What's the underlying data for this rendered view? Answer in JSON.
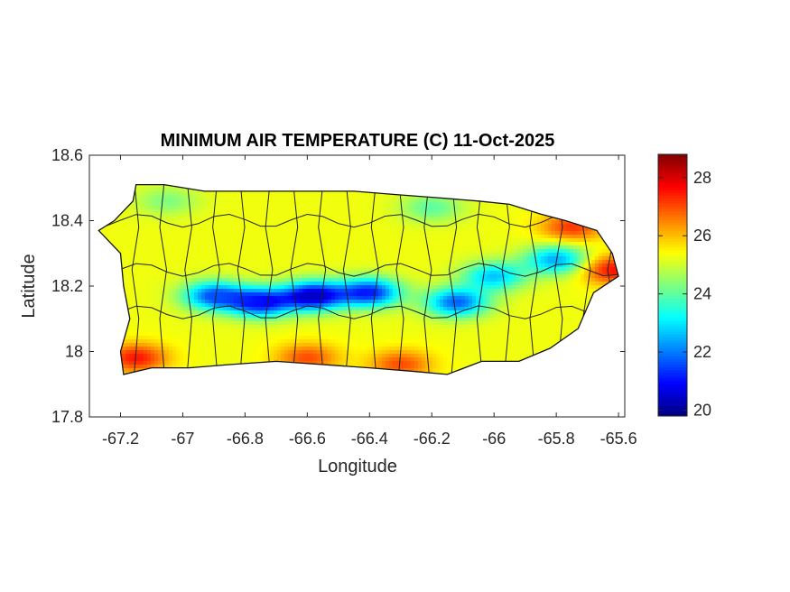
{
  "chart_data": {
    "type": "heatmap",
    "title": "MINIMUM AIR TEMPERATURE (C) 11-Oct-2025",
    "xlabel": "Longitude",
    "ylabel": "Latitude",
    "xlim": [
      -67.3,
      -65.58
    ],
    "ylim": [
      17.8,
      18.6
    ],
    "xticks": [
      -67.2,
      -67,
      -66.8,
      -66.6,
      -66.4,
      -66.2,
      -66,
      -65.8,
      -65.6
    ],
    "xtick_labels": [
      "-67.2",
      "-67",
      "-66.8",
      "-66.6",
      "-66.4",
      "-66.2",
      "-66",
      "-65.8",
      "-65.6"
    ],
    "yticks": [
      17.8,
      18,
      18.2,
      18.4,
      18.6
    ],
    "ytick_labels": [
      "17.8",
      "18",
      "18.2",
      "18.4",
      "18.6"
    ],
    "colorbar": {
      "range": [
        19.8,
        28.8
      ],
      "ticks": [
        20,
        22,
        24,
        26,
        28
      ],
      "tick_labels": [
        "20",
        "22",
        "24",
        "26",
        "28"
      ],
      "colormap": "jet"
    },
    "field": {
      "base_value": 25.3,
      "features": [
        {
          "lon": -66.58,
          "lat": 18.17,
          "value": 20.4
        },
        {
          "lon": -66.75,
          "lat": 18.15,
          "value": 21.0
        },
        {
          "lon": -66.4,
          "lat": 18.18,
          "value": 21.2
        },
        {
          "lon": -66.9,
          "lat": 18.17,
          "value": 21.7
        },
        {
          "lon": -66.12,
          "lat": 18.15,
          "value": 21.8
        },
        {
          "lon": -65.8,
          "lat": 18.28,
          "value": 22.4
        },
        {
          "lon": -66.0,
          "lat": 18.23,
          "value": 22.7
        },
        {
          "lon": -67.15,
          "lat": 17.98,
          "value": 27.5
        },
        {
          "lon": -66.6,
          "lat": 17.98,
          "value": 27.0
        },
        {
          "lon": -66.3,
          "lat": 17.96,
          "value": 27.0
        },
        {
          "lon": -65.75,
          "lat": 18.38,
          "value": 27.2
        },
        {
          "lon": -65.62,
          "lat": 18.25,
          "value": 27.6
        },
        {
          "lon": -67.05,
          "lat": 18.46,
          "value": 24.3
        },
        {
          "lon": -66.2,
          "lat": 18.44,
          "value": 24.0
        }
      ]
    },
    "island_outline": [
      [
        -67.27,
        18.37
      ],
      [
        -67.22,
        18.4
      ],
      [
        -67.16,
        18.46
      ],
      [
        -67.15,
        18.51
      ],
      [
        -67.06,
        18.51
      ],
      [
        -66.93,
        18.49
      ],
      [
        -66.8,
        18.49
      ],
      [
        -66.62,
        18.49
      ],
      [
        -66.45,
        18.49
      ],
      [
        -66.32,
        18.48
      ],
      [
        -66.18,
        18.47
      ],
      [
        -66.05,
        18.46
      ],
      [
        -65.95,
        18.45
      ],
      [
        -65.85,
        18.42
      ],
      [
        -65.77,
        18.4
      ],
      [
        -65.67,
        18.37
      ],
      [
        -65.62,
        18.3
      ],
      [
        -65.6,
        18.23
      ],
      [
        -65.68,
        18.18
      ],
      [
        -65.73,
        18.07
      ],
      [
        -65.82,
        18.01
      ],
      [
        -65.92,
        17.97
      ],
      [
        -66.04,
        17.97
      ],
      [
        -66.15,
        17.93
      ],
      [
        -66.27,
        17.94
      ],
      [
        -66.4,
        17.95
      ],
      [
        -66.55,
        17.96
      ],
      [
        -66.7,
        17.97
      ],
      [
        -66.85,
        17.96
      ],
      [
        -66.98,
        17.95
      ],
      [
        -67.1,
        17.95
      ],
      [
        -67.19,
        17.93
      ],
      [
        -67.2,
        18.0
      ],
      [
        -67.17,
        18.1
      ],
      [
        -67.19,
        18.2
      ],
      [
        -67.2,
        18.3
      ]
    ]
  }
}
